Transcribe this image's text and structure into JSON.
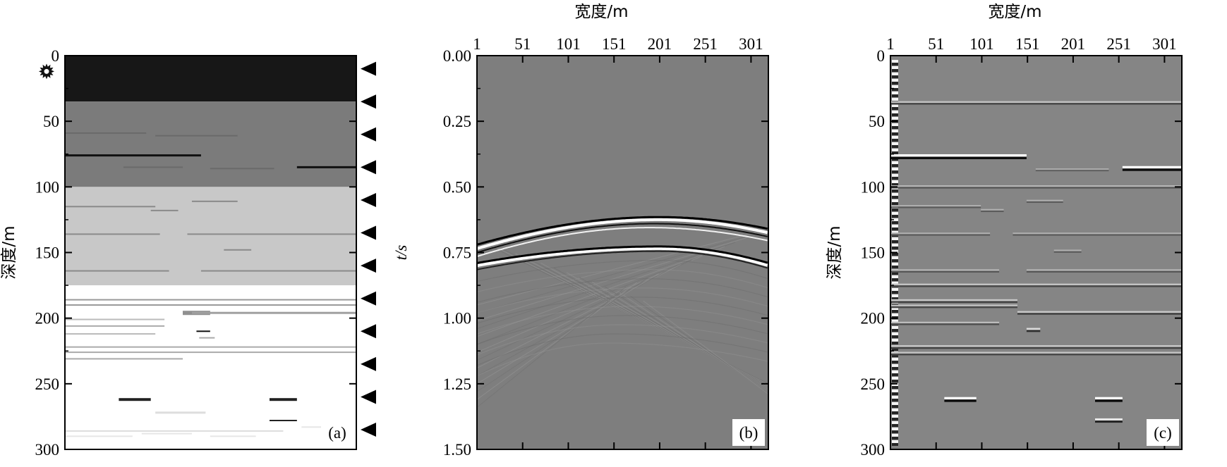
{
  "chart_data": [
    {
      "panel_label": "(a)",
      "type": "heatmap",
      "ylabel": "深度/m",
      "y_ticks": [
        "0",
        "50",
        "100",
        "150",
        "200",
        "250",
        "300"
      ],
      "ylim": [
        0,
        300
      ],
      "xlim": [
        1,
        320
      ],
      "colormap": "gray",
      "source_icon": "star-burst-icon",
      "receiver_icon": "triangle-left-icon",
      "receiver_depths": [
        10,
        35,
        60,
        85,
        110,
        135,
        160,
        185,
        210,
        235,
        260,
        285
      ],
      "layers": [
        {
          "top": 0,
          "bottom": 35,
          "color": "#171717"
        },
        {
          "top": 35,
          "bottom": 100,
          "color": "#7b7b7b"
        },
        {
          "top": 100,
          "bottom": 175,
          "color": "#c8c8c8"
        },
        {
          "top": 175,
          "bottom": 300,
          "color": "#ffffff"
        }
      ],
      "streaks": [
        {
          "x0": 1,
          "x1": 150,
          "y": 76,
          "thick": 3,
          "color": "#111111"
        },
        {
          "x0": 1,
          "x1": 90,
          "y": 59,
          "thick": 2,
          "color": "#6a6a6a"
        },
        {
          "x0": 100,
          "x1": 190,
          "y": 61,
          "thick": 2,
          "color": "#6a6a6a"
        },
        {
          "x0": 65,
          "x1": 130,
          "y": 85,
          "thick": 2,
          "color": "#6a6a6a"
        },
        {
          "x0": 160,
          "x1": 230,
          "y": 86,
          "thick": 2,
          "color": "#6a6a6a"
        },
        {
          "x0": 255,
          "x1": 320,
          "y": 85,
          "thick": 3,
          "color": "#111111"
        },
        {
          "x0": 1,
          "x1": 100,
          "y": 115,
          "thick": 2,
          "color": "#8a8a8a"
        },
        {
          "x0": 95,
          "x1": 125,
          "y": 118,
          "thick": 2,
          "color": "#8a8a8a"
        },
        {
          "x0": 140,
          "x1": 190,
          "y": 111,
          "thick": 2,
          "color": "#8a8a8a"
        },
        {
          "x0": 1,
          "x1": 105,
          "y": 136,
          "thick": 2,
          "color": "#8a8a8a"
        },
        {
          "x0": 135,
          "x1": 320,
          "y": 136,
          "thick": 2,
          "color": "#8a8a8a"
        },
        {
          "x0": 175,
          "x1": 205,
          "y": 148,
          "thick": 2,
          "color": "#8a8a8a"
        },
        {
          "x0": 1,
          "x1": 115,
          "y": 164,
          "thick": 2,
          "color": "#8a8a8a"
        },
        {
          "x0": 150,
          "x1": 320,
          "y": 164,
          "thick": 2,
          "color": "#8a8a8a"
        },
        {
          "x0": 1,
          "x1": 320,
          "y": 186,
          "thick": 2,
          "color": "#999999"
        },
        {
          "x0": 1,
          "x1": 320,
          "y": 190,
          "thick": 2,
          "color": "#999999"
        },
        {
          "x0": 130,
          "x1": 160,
          "y": 196,
          "thick": 6,
          "color": "#909090"
        },
        {
          "x0": 140,
          "x1": 320,
          "y": 196,
          "thick": 3,
          "color": "#a0a0a0"
        },
        {
          "x0": 1,
          "x1": 110,
          "y": 201,
          "thick": 2,
          "color": "#bbbbbb"
        },
        {
          "x0": 1,
          "x1": 110,
          "y": 206,
          "thick": 2,
          "color": "#aaaaaa"
        },
        {
          "x0": 1,
          "x1": 100,
          "y": 212,
          "thick": 2,
          "color": "#bbbbbb"
        },
        {
          "x0": 145,
          "x1": 160,
          "y": 210,
          "thick": 2,
          "color": "#111111"
        },
        {
          "x0": 148,
          "x1": 165,
          "y": 215,
          "thick": 2,
          "color": "#aaaaaa"
        },
        {
          "x0": 1,
          "x1": 320,
          "y": 222,
          "thick": 2,
          "color": "#aaaaaa"
        },
        {
          "x0": 1,
          "x1": 320,
          "y": 226,
          "thick": 2,
          "color": "#aaaaaa"
        },
        {
          "x0": 1,
          "x1": 130,
          "y": 231,
          "thick": 2,
          "color": "#aaaaaa"
        },
        {
          "x0": 60,
          "x1": 95,
          "y": 262,
          "thick": 4,
          "color": "#222222"
        },
        {
          "x0": 225,
          "x1": 255,
          "y": 262,
          "thick": 4,
          "color": "#222222"
        },
        {
          "x0": 225,
          "x1": 255,
          "y": 278,
          "thick": 2,
          "color": "#222222"
        },
        {
          "x0": 100,
          "x1": 155,
          "y": 272,
          "thick": 3,
          "color": "#dddddd"
        },
        {
          "x0": 1,
          "x1": 240,
          "y": 286,
          "thick": 2,
          "color": "#dddddd"
        },
        {
          "x0": 1,
          "x1": 75,
          "y": 290,
          "thick": 2,
          "color": "#e6e6e6"
        },
        {
          "x0": 85,
          "x1": 140,
          "y": 288,
          "thick": 2,
          "color": "#e6e6e6"
        },
        {
          "x0": 160,
          "x1": 210,
          "y": 290,
          "thick": 2,
          "color": "#e6e6e6"
        },
        {
          "x0": 260,
          "x1": 300,
          "y": 283,
          "thick": 2,
          "color": "#e6e6e6"
        }
      ]
    },
    {
      "panel_label": "(b)",
      "type": "heatmap",
      "xlabel": "宽度/m",
      "ylabel": "t/s",
      "x_ticks": [
        "1",
        "51",
        "101",
        "151",
        "201",
        "251",
        "301"
      ],
      "y_ticks": [
        "0.00",
        "0.25",
        "0.50",
        "0.75",
        "1.00",
        "1.25",
        "1.50"
      ],
      "xlim": [
        1,
        320
      ],
      "ylim": [
        0,
        1.5
      ],
      "background_color": "#7e7e7e",
      "events": [
        {
          "apex_x": 200,
          "t_apex": 0.615,
          "t_left": 0.72,
          "t_right": 0.66,
          "color": "#000000",
          "width": 3
        },
        {
          "apex_x": 200,
          "t_apex": 0.625,
          "t_left": 0.735,
          "t_right": 0.675,
          "color": "#ffffff",
          "width": 4
        },
        {
          "apex_x": 195,
          "t_apex": 0.64,
          "t_left": 0.75,
          "t_right": 0.69,
          "color": "#111111",
          "width": 2
        },
        {
          "apex_x": 190,
          "t_apex": 0.655,
          "t_left": 0.765,
          "t_right": 0.705,
          "color": "#f2f2f2",
          "width": 2
        },
        {
          "apex_x": 200,
          "t_apex": 0.735,
          "t_left": 0.8,
          "t_right": 0.8,
          "color": "#ffffff",
          "width": 4
        },
        {
          "apex_x": 200,
          "t_apex": 0.727,
          "t_left": 0.79,
          "t_right": 0.79,
          "color": "#000000",
          "width": 3
        },
        {
          "apex_x": 200,
          "t_apex": 0.745,
          "t_left": 0.815,
          "t_right": 0.81,
          "color": "#222222",
          "width": 2
        }
      ]
    },
    {
      "panel_label": "(c)",
      "type": "heatmap",
      "xlabel": "宽度/m",
      "ylabel": "深度/m",
      "x_ticks": [
        "1",
        "51",
        "101",
        "151",
        "201",
        "251",
        "301"
      ],
      "y_ticks": [
        "0",
        "50",
        "100",
        "150",
        "200",
        "250",
        "300"
      ],
      "xlim": [
        1,
        320
      ],
      "ylim": [
        0,
        300
      ],
      "background_color": "#858585",
      "reflectors": [
        {
          "x0": 1,
          "x1": 320,
          "y": 36,
          "strength": 0.5
        },
        {
          "x0": 1,
          "x1": 150,
          "y": 77,
          "strength": 1.0
        },
        {
          "x0": 255,
          "x1": 320,
          "y": 86,
          "strength": 1.0
        },
        {
          "x0": 160,
          "x1": 240,
          "y": 87,
          "strength": 0.3
        },
        {
          "x0": 1,
          "x1": 320,
          "y": 100,
          "strength": 0.4
        },
        {
          "x0": 1,
          "x1": 100,
          "y": 115,
          "strength": 0.35
        },
        {
          "x0": 100,
          "x1": 125,
          "y": 118,
          "strength": 0.35
        },
        {
          "x0": 150,
          "x1": 190,
          "y": 111,
          "strength": 0.35
        },
        {
          "x0": 1,
          "x1": 110,
          "y": 136,
          "strength": 0.35
        },
        {
          "x0": 135,
          "x1": 320,
          "y": 136,
          "strength": 0.35
        },
        {
          "x0": 180,
          "x1": 210,
          "y": 149,
          "strength": 0.35
        },
        {
          "x0": 1,
          "x1": 120,
          "y": 164,
          "strength": 0.4
        },
        {
          "x0": 150,
          "x1": 320,
          "y": 164,
          "strength": 0.4
        },
        {
          "x0": 1,
          "x1": 320,
          "y": 175,
          "strength": 0.5
        },
        {
          "x0": 1,
          "x1": 140,
          "y": 187,
          "strength": 0.55
        },
        {
          "x0": 1,
          "x1": 140,
          "y": 191,
          "strength": 0.5
        },
        {
          "x0": 140,
          "x1": 320,
          "y": 196,
          "strength": 0.55
        },
        {
          "x0": 1,
          "x1": 120,
          "y": 204,
          "strength": 0.45
        },
        {
          "x0": 150,
          "x1": 165,
          "y": 209,
          "strength": 0.7
        },
        {
          "x0": 1,
          "x1": 320,
          "y": 222,
          "strength": 0.55
        },
        {
          "x0": 1,
          "x1": 320,
          "y": 227,
          "strength": 0.5
        },
        {
          "x0": 60,
          "x1": 95,
          "y": 262,
          "strength": 1.0
        },
        {
          "x0": 225,
          "x1": 255,
          "y": 262,
          "strength": 1.0
        },
        {
          "x0": 225,
          "x1": 255,
          "y": 278,
          "strength": 0.8
        }
      ]
    }
  ]
}
